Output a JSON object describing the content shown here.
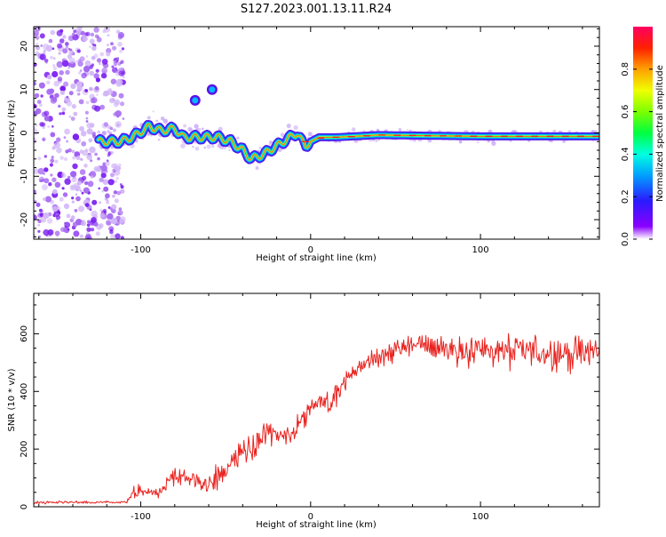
{
  "title": "S127.2023.001.13.11.R24",
  "colors": {
    "snr_line": "#e8231f",
    "speckle": "#8a2be2",
    "axis": "#000000"
  },
  "chart_data": [
    {
      "type": "heatmap",
      "name": "spectrogram",
      "xlabel": "Height of straight line (km)",
      "ylabel": "Frequency (Hz)",
      "xlim": [
        -163,
        170
      ],
      "ylim": [
        -24.5,
        24.5
      ],
      "x_ticks": [
        -100,
        0,
        100
      ],
      "x_tick_labels": [
        "-100",
        "0",
        "100"
      ],
      "y_ticks": [
        -20,
        -10,
        0,
        10,
        20
      ],
      "y_tick_labels": [
        "-20",
        "-10",
        "0",
        "10",
        "20"
      ],
      "noise_region_x": [
        -163,
        -110
      ],
      "ridge": {
        "x": [
          -125,
          -112,
          -105,
          -95,
          -88,
          -80,
          -75,
          -65,
          -55,
          -47,
          -40,
          -35,
          -28,
          -20,
          -12,
          -8,
          -5,
          -3,
          0,
          5,
          15,
          40,
          100,
          170
        ],
        "freq": [
          -2,
          -2,
          -1,
          1.5,
          0.5,
          1,
          -1,
          -1,
          -1,
          -2,
          -4,
          -6,
          -5,
          -3,
          -1,
          0,
          -2,
          -3,
          -2,
          -1,
          -1,
          -0.5,
          -0.8,
          -0.8
        ]
      },
      "isolated_blobs": [
        {
          "x": -68,
          "freq": 7.5
        },
        {
          "x": -58,
          "freq": 10
        }
      ],
      "colorbar": {
        "label": "Normalized spectral amplitude",
        "range": [
          0,
          1
        ],
        "tick_labels": [
          "0.0",
          "0.2",
          "0.4",
          "0.6",
          "0.8"
        ],
        "ticks": [
          0,
          0.2,
          0.4,
          0.6,
          0.8
        ],
        "colormap": "gist_rainbow (purple to red)"
      }
    },
    {
      "type": "line",
      "name": "snr",
      "xlabel": "Height of straight line (km)",
      "ylabel": "SNR (10 * v/v)",
      "xlim": [
        -163,
        170
      ],
      "ylim": [
        0,
        740
      ],
      "x_ticks": [
        -100,
        0,
        100
      ],
      "x_tick_labels": [
        "-100",
        "0",
        "100"
      ],
      "y_ticks": [
        0,
        200,
        400,
        600
      ],
      "y_tick_labels": [
        "0",
        "200",
        "400",
        "600"
      ],
      "envelope": {
        "x": [
          -163,
          -108,
          -105,
          -100,
          -90,
          -80,
          -70,
          -60,
          -50,
          -40,
          -35,
          -30,
          -20,
          -10,
          -5,
          0,
          5,
          10,
          15,
          20,
          30,
          40,
          50,
          60,
          70,
          80,
          90,
          100,
          110,
          120,
          130,
          140,
          150,
          160,
          170
        ],
        "mean": [
          15,
          15,
          40,
          60,
          45,
          110,
          90,
          80,
          120,
          210,
          170,
          250,
          240,
          260,
          300,
          330,
          380,
          320,
          400,
          440,
          490,
          520,
          540,
          560,
          560,
          550,
          545,
          545,
          540,
          535,
          540,
          535,
          530,
          535,
          540
        ],
        "spread": [
          8,
          8,
          40,
          45,
          45,
          55,
          60,
          60,
          70,
          90,
          80,
          80,
          60,
          60,
          70,
          70,
          60,
          110,
          80,
          60,
          45,
          50,
          70,
          80,
          90,
          100,
          100,
          100,
          110,
          110,
          110,
          100,
          100,
          100,
          100
        ]
      }
    }
  ]
}
